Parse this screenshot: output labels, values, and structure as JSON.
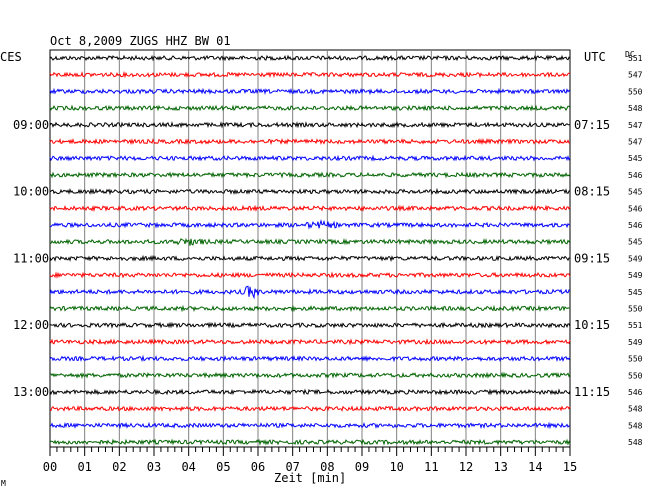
{
  "chart_data": {
    "type": "line",
    "title": "Oct 8,2009   ZUGS HHZ BW 01",
    "left_timezone": "CES",
    "right_timezone": "UTC",
    "right_column_header": "DC",
    "xlabel": "Zeit [min]",
    "xlim": [
      0,
      15
    ],
    "x_ticks": [
      "00",
      "01",
      "02",
      "03",
      "04",
      "05",
      "06",
      "07",
      "08",
      "09",
      "10",
      "11",
      "12",
      "13",
      "14",
      "15"
    ],
    "rows_per_hour": 4,
    "trace_colors": [
      "#000000",
      "#ff0000",
      "#0000ff",
      "#006400"
    ],
    "left_hour_labels": [
      "09:00",
      "10:00",
      "11:00",
      "12:00",
      "13:00"
    ],
    "right_hour_labels": [
      "07:15",
      "08:15",
      "09:15",
      "10:15",
      "11:15"
    ],
    "dc_offsets": [
      551,
      547,
      550,
      548,
      547,
      547,
      545,
      546,
      545,
      546,
      546,
      545,
      549,
      549,
      545,
      550,
      551,
      549,
      550,
      550,
      546,
      548,
      548,
      548
    ],
    "events": [
      {
        "row": 10,
        "minute": 7.8,
        "amplitude": "small"
      },
      {
        "row": 11,
        "minute": 4.0,
        "amplitude": "small"
      },
      {
        "row": 14,
        "minute": 5.8,
        "amplitude": "large"
      }
    ],
    "grid": true,
    "corner_mark": "M"
  }
}
